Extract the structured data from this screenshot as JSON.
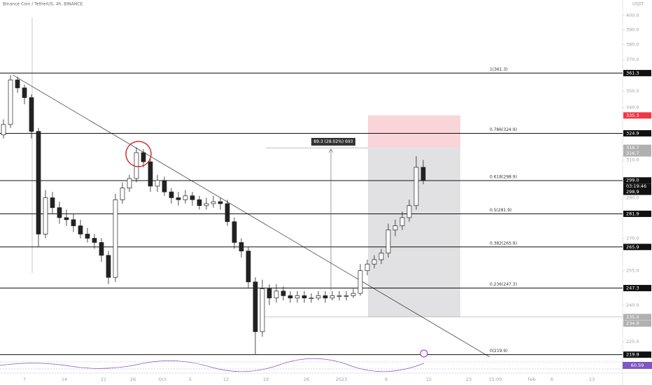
{
  "chart_data": {
    "type": "candlestick",
    "title": "Binance Coin / TetherUS, 4h, BINANCE",
    "currency": "USDT",
    "log_scale": true,
    "ylim": [
      219,
      411
    ],
    "yticks": [
      {
        "value": 400,
        "label": "400.0"
      },
      {
        "value": 390,
        "label": "390.0"
      },
      {
        "value": 380,
        "label": "380.0"
      },
      {
        "value": 370,
        "label": "370.0"
      },
      {
        "value": 350,
        "label": "350.0"
      },
      {
        "value": 340,
        "label": "340.0"
      },
      {
        "value": 310,
        "label": "310.0"
      },
      {
        "value": 290,
        "label": "290.0"
      },
      {
        "value": 270,
        "label": "270.0"
      },
      {
        "value": 255,
        "label": "255.0"
      },
      {
        "value": 240,
        "label": "240.0"
      },
      {
        "value": 225,
        "label": "225.0"
      }
    ],
    "x": [
      "7",
      "14",
      "21",
      "26",
      "Oct",
      "5",
      "12",
      "19",
      "26",
      "2023",
      "9",
      "15",
      "23",
      "15:00",
      "Feb",
      "6",
      "13"
    ],
    "candles": [
      [
        324,
        333,
        322,
        330
      ],
      [
        330,
        360,
        328,
        357
      ],
      [
        357,
        359,
        349,
        352
      ],
      [
        352,
        354,
        342,
        346
      ],
      [
        346,
        348,
        322,
        326
      ],
      [
        326,
        328,
        266,
        272
      ],
      [
        272,
        294,
        270,
        290
      ],
      [
        290,
        293,
        282,
        285
      ],
      [
        285,
        288,
        277,
        280
      ],
      [
        280,
        284,
        276,
        279
      ],
      [
        279,
        282,
        273,
        276
      ],
      [
        276,
        279,
        270,
        272
      ],
      [
        272,
        275,
        268,
        270
      ],
      [
        270,
        272,
        265,
        268
      ],
      [
        268,
        270,
        259,
        262
      ],
      [
        262,
        264,
        249,
        252
      ],
      [
        252,
        292,
        250,
        289
      ],
      [
        289,
        298,
        287,
        295
      ],
      [
        295,
        302,
        293,
        300
      ],
      [
        300,
        317,
        298,
        314
      ],
      [
        314,
        316,
        306,
        309
      ],
      [
        309,
        311,
        293,
        296
      ],
      [
        296,
        302,
        293,
        299
      ],
      [
        299,
        301,
        291,
        293
      ],
      [
        293,
        295,
        287,
        290
      ],
      [
        290,
        293,
        286,
        289
      ],
      [
        289,
        294,
        287,
        291
      ],
      [
        291,
        293,
        286,
        289
      ],
      [
        289,
        291,
        284,
        286
      ],
      [
        286,
        290,
        284,
        287
      ],
      [
        287,
        291,
        285,
        288
      ],
      [
        288,
        290,
        284,
        287
      ],
      [
        287,
        289,
        276,
        278
      ],
      [
        278,
        280,
        265,
        268
      ],
      [
        268,
        270,
        261,
        264
      ],
      [
        264,
        266,
        247,
        250
      ],
      [
        250,
        252,
        220,
        229
      ],
      [
        229,
        251,
        227,
        247
      ],
      [
        247,
        249,
        240,
        243
      ],
      [
        243,
        249,
        241,
        246
      ],
      [
        246,
        248,
        242,
        244
      ],
      [
        244,
        246,
        241,
        243
      ],
      [
        243,
        246,
        241,
        244
      ],
      [
        244,
        246,
        241,
        243
      ],
      [
        243,
        245,
        241,
        243
      ],
      [
        243,
        246,
        242,
        244
      ],
      [
        244,
        246,
        241,
        243
      ],
      [
        243,
        246,
        242,
        244
      ],
      [
        244,
        246,
        242,
        244
      ],
      [
        244,
        246,
        242,
        244
      ],
      [
        244,
        247,
        243,
        245
      ],
      [
        245,
        258,
        244,
        255
      ],
      [
        255,
        260,
        253,
        258
      ],
      [
        258,
        262,
        256,
        260
      ],
      [
        260,
        265,
        258,
        263
      ],
      [
        263,
        277,
        261,
        274
      ],
      [
        274,
        279,
        271,
        276
      ],
      [
        276,
        283,
        274,
        280
      ],
      [
        280,
        289,
        278,
        286
      ],
      [
        286,
        312,
        284,
        306
      ],
      [
        306,
        310,
        297,
        299
      ]
    ],
    "fib_levels": [
      {
        "value": 361.3,
        "label": "1(361.3)"
      },
      {
        "value": 324.9,
        "label": "0.786(324.9)"
      },
      {
        "value": 298.9,
        "label": "0.618(298.9)"
      },
      {
        "value": 281.9,
        "label": "0.5(281.9)"
      },
      {
        "value": 265.9,
        "label": "0.382(265.9)"
      },
      {
        "value": 247.3,
        "label": "0.236(247.3)"
      },
      {
        "value": 219.9,
        "label": "0(219.9)"
      }
    ],
    "price_tags": [
      {
        "value": 361.3,
        "label": "361.3"
      },
      {
        "value": 335.3,
        "label": "335.3"
      },
      {
        "value": 324.9,
        "label": "324.9"
      },
      {
        "value": 316.7,
        "label": "316.7"
      },
      {
        "value": 316.7,
        "label": "316.7"
      },
      {
        "value": 299.0,
        "label": "299.0"
      },
      {
        "value": 298.9,
        "label": "298.9"
      },
      {
        "value": 281.9,
        "label": "281.9"
      },
      {
        "value": 265.9,
        "label": "265.9"
      },
      {
        "value": 247.3,
        "label": "247.3"
      },
      {
        "value": 235.0,
        "label": "235.0"
      },
      {
        "value": 234.9,
        "label": "234.9"
      },
      {
        "value": 219.9,
        "label": "219.9"
      }
    ],
    "countdown": "03:19:46",
    "measure_label": "89.3 (28.02%) 693",
    "indicator_value": "60.59"
  }
}
